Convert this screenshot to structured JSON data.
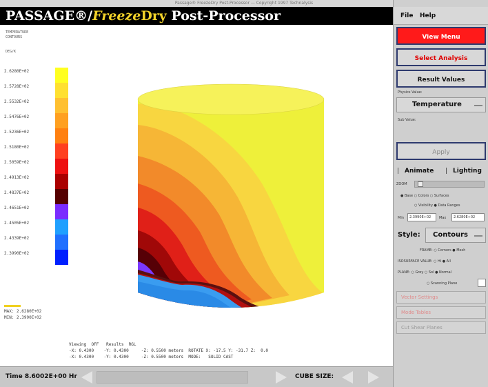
{
  "window_title": "Passage® FreezeDry Post-Processor — Copyright 1997 Technalysis",
  "header": {
    "t1": "PASSAGE",
    "t2": "®/",
    "t3": "Freeze",
    "t4": "Dry",
    "t5": " Post-Processor"
  },
  "legend": {
    "hdr1": "TEMPERATURE",
    "hdr2": "CONTOURS",
    "units": "DEG/K",
    "ticks": [
      "2.6280E+02",
      "2.5728E+02",
      "2.5532E+02",
      "2.5476E+02",
      "2.5236E+02",
      "2.5180E+02",
      "2.5059E+02",
      "2.4913E+02",
      "2.4837E+02",
      "2.4651E+02",
      "2.4505E+02",
      "2.4339E+02",
      "2.3990E+02"
    ],
    "colors": [
      "#ffff20",
      "#ffe030",
      "#ffc030",
      "#ffa020",
      "#ff8010",
      "#ff4020",
      "#ee1010",
      "#aa0000",
      "#550000",
      "#7a2cff",
      "#20a0ff",
      "#2070ff",
      "#0020ff"
    ],
    "max": "MAX: 2.6280E+02",
    "min": "MIN: 2.3990E+02"
  },
  "viewer_info": {
    "line1": "Viewing  OFF   Results  RGL",
    "line2": "-X: 0.4300    -Y: 0.4300     -Z: 0.5500 meters  ROTATE X: -17.5 Y: -31.7 Z:  0.0",
    "line3": "-X: 0.4300    -Y: 0.4300     -Z: 0.5500 meters  MODE:   SOLID CAST"
  },
  "timebar": {
    "time_label": "Time 8.6002E+00 Hr",
    "cube_label": "CUBE SIZE:"
  },
  "menu": {
    "file": "File",
    "help": "Help"
  },
  "panel": {
    "view_menu": "View Menu",
    "select_analysis": "Select Analysis",
    "result_values": "Result Values",
    "physics_label": "Physics Value:",
    "physics_value": "Temperature",
    "sub_label": "Sub Value:",
    "apply": "Apply",
    "animate": "Animate",
    "lighting": "Lighting",
    "zoom": "ZOOM",
    "radio_row1": "● Base  ○ Colors  ○ Surfaces",
    "radio_row2": "○ Visibility  ● Data Ranges",
    "min_label": "Min",
    "min_value": "2.3990E+02",
    "max_label": "Max",
    "max_value": "2.6280E+02",
    "style_label": "Style:",
    "style_value": "Contours",
    "row_a": "FRAME: ○ Corners ● Mesh",
    "row_b": "ISOSURFACE VALUE: ○ Hi ● All",
    "row_c": "PLANE: ○ Grey ○ Sol ● Normal",
    "row_d": "○ Scanning Plane",
    "vector_settings": "Vector Settings",
    "mode_tables": "Mode Tables",
    "cut_shear": "Cut Shear Planes"
  }
}
